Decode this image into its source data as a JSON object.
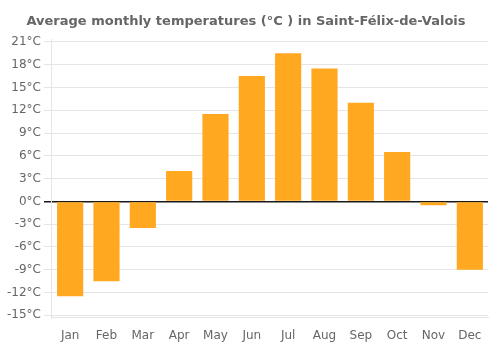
{
  "chart_data": {
    "type": "bar",
    "title": "Average monthly temperatures (°C ) in Saint-Félix-de-Valois",
    "categories": [
      "Jan",
      "Feb",
      "Mar",
      "Apr",
      "May",
      "Jun",
      "Jul",
      "Aug",
      "Sep",
      "Oct",
      "Nov",
      "Dec"
    ],
    "values": [
      -12.5,
      -10.5,
      -3.5,
      4.0,
      11.5,
      16.5,
      19.5,
      17.5,
      13.0,
      6.5,
      -0.5,
      -9.0
    ],
    "color": "#FFA820",
    "ylim": [
      -15.3,
      21.3
    ],
    "yticks": [
      {
        "value": -15,
        "label": "-15°C"
      },
      {
        "value": -12,
        "label": "-12°C"
      },
      {
        "value": -9,
        "label": "-9°C"
      },
      {
        "value": -6,
        "label": "-6°C"
      },
      {
        "value": -3,
        "label": "-3°C"
      },
      {
        "value": 0,
        "label": "0°C"
      },
      {
        "value": 3,
        "label": "3°C"
      },
      {
        "value": 6,
        "label": "6°C"
      },
      {
        "value": 9,
        "label": "9°C"
      },
      {
        "value": 12,
        "label": "12°C"
      },
      {
        "value": 15,
        "label": "15°C"
      },
      {
        "value": 18,
        "label": "18°C"
      },
      {
        "value": 21,
        "label": "21°C"
      }
    ],
    "grid": true
  }
}
